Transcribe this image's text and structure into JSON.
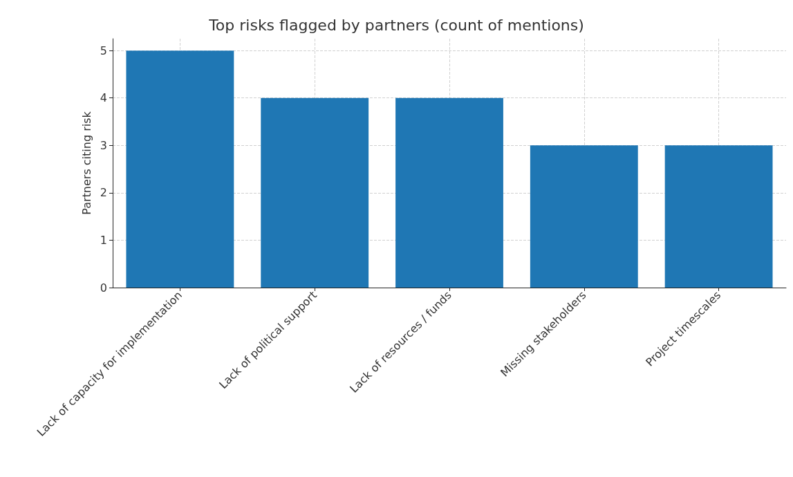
{
  "chart_data": {
    "type": "bar",
    "title": "Top risks flagged by partners (count of mentions)",
    "ylabel": "Partners citing risk",
    "categories": [
      "Lack of capacity for implementation",
      "Lack of political support",
      "Lack of resources / funds",
      "Missing stakeholders",
      "Project timescales"
    ],
    "values": [
      5,
      4,
      4,
      3,
      3
    ],
    "color": "#1f77b4",
    "ylim": [
      0,
      5.25
    ],
    "yticks": [
      0,
      1,
      2,
      3,
      4,
      5
    ],
    "grid": true
  }
}
